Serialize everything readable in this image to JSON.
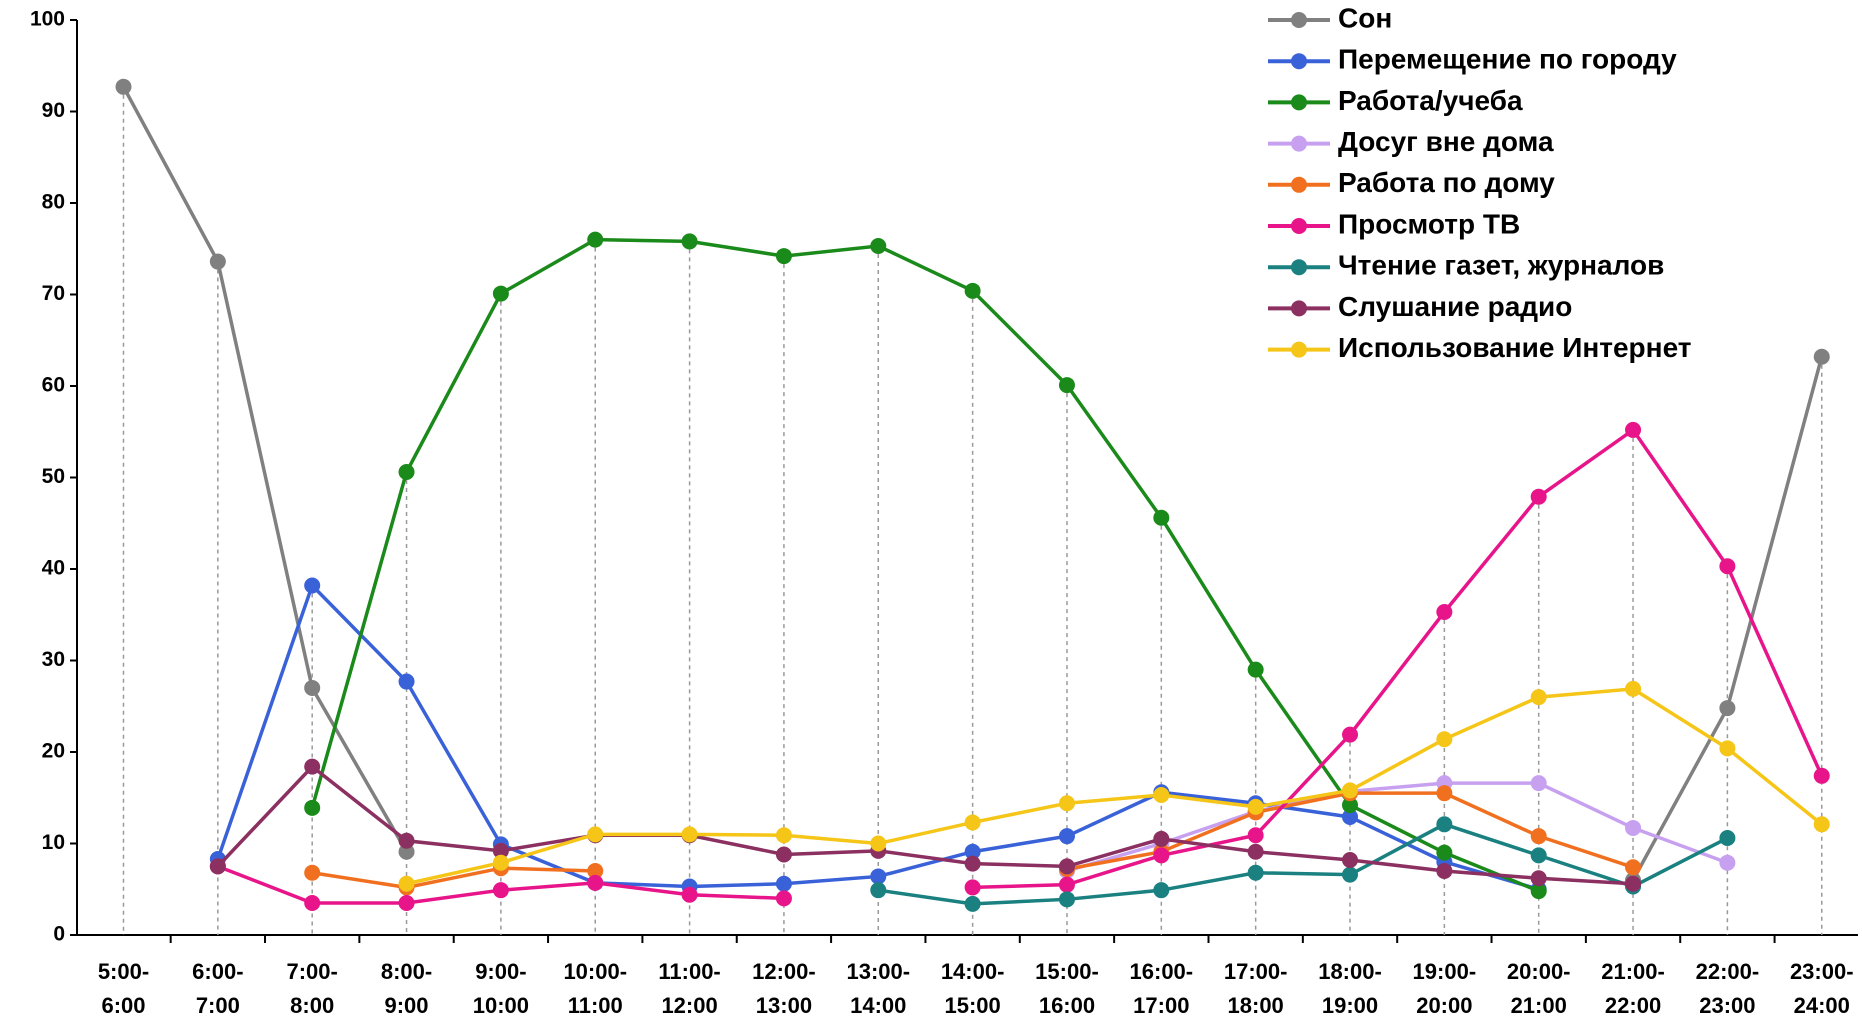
{
  "chart_data": {
    "type": "line",
    "categories": [
      "5:00-6:00",
      "6:00-7:00",
      "7:00-8:00",
      "8:00-9:00",
      "9:00-10:00",
      "10:00-11:00",
      "11:00-12:00",
      "12:00-13:00",
      "13:00-14:00",
      "14:00-15:00",
      "15:00-16:00",
      "16:00-17:00",
      "17:00-18:00",
      "18:00-19:00",
      "19:00-20:00",
      "20:00-21:00",
      "21:00-22:00",
      "22:00-23:00",
      "23:00-24:00"
    ],
    "series": [
      {
        "name": "Сон",
        "color": "#808080",
        "values": [
          92.7,
          73.6,
          27,
          9.1,
          null,
          null,
          null,
          null,
          null,
          null,
          null,
          null,
          null,
          null,
          null,
          null,
          6,
          24.8,
          63.2
        ]
      },
      {
        "name": "Перемещение по городу",
        "color": "#3a62d8",
        "values": [
          null,
          8.3,
          38.2,
          27.7,
          9.9,
          5.7,
          5.3,
          5.6,
          6.4,
          9.1,
          10.8,
          15.6,
          14.4,
          12.9,
          8,
          5,
          null,
          null,
          null
        ]
      },
      {
        "name": "Работа/учеба",
        "color": "#1a8a1a",
        "values": [
          null,
          null,
          13.9,
          50.6,
          70.1,
          76,
          75.8,
          74.2,
          75.3,
          70.4,
          60.1,
          45.6,
          29,
          14.2,
          9,
          4.8,
          null,
          null,
          null
        ]
      },
      {
        "name": "Досуг вне дома",
        "color": "#c7a0f0",
        "values": [
          null,
          null,
          null,
          null,
          null,
          null,
          null,
          null,
          null,
          null,
          7,
          10,
          13.5,
          15.7,
          16.6,
          16.6,
          11.7,
          7.9,
          null
        ]
      },
      {
        "name": "Работа по дому",
        "color": "#f07020",
        "values": [
          null,
          null,
          6.8,
          5.2,
          7.3,
          7,
          null,
          null,
          null,
          null,
          7.2,
          9.1,
          13.4,
          15.5,
          15.5,
          10.8,
          7.4,
          null,
          null
        ]
      },
      {
        "name": "Просмотр ТВ",
        "color": "#e8158a",
        "values": [
          null,
          7.5,
          3.5,
          3.5,
          4.9,
          5.7,
          4.4,
          4,
          null,
          5.2,
          5.5,
          8.7,
          10.9,
          21.9,
          35.3,
          47.9,
          55.2,
          40.3,
          17.4
        ]
      },
      {
        "name": "Чтение газет, журналов",
        "color": "#1a8080",
        "values": [
          null,
          null,
          null,
          null,
          null,
          null,
          null,
          null,
          4.9,
          3.4,
          3.9,
          4.9,
          6.8,
          6.6,
          12.1,
          8.7,
          5.3,
          10.6,
          null
        ]
      },
      {
        "name": "Слушание радио",
        "color": "#8b3060",
        "values": [
          null,
          7.5,
          18.4,
          10.3,
          9.2,
          10.9,
          10.9,
          8.8,
          9.2,
          7.8,
          7.5,
          10.5,
          9.1,
          8.2,
          7,
          6.2,
          5.6,
          null,
          null
        ]
      },
      {
        "name": "Использование Интернет",
        "color": "#f5c518",
        "values": [
          null,
          null,
          null,
          5.6,
          7.9,
          11,
          11,
          10.9,
          10,
          12.3,
          14.4,
          15.3,
          14,
          15.8,
          21.4,
          26,
          26.9,
          20.4,
          12.1
        ]
      }
    ],
    "ylim": [
      0,
      100
    ],
    "yticks": [
      0,
      10,
      20,
      30,
      40,
      50,
      60,
      70,
      80,
      90,
      100
    ],
    "legend": "top-right"
  }
}
